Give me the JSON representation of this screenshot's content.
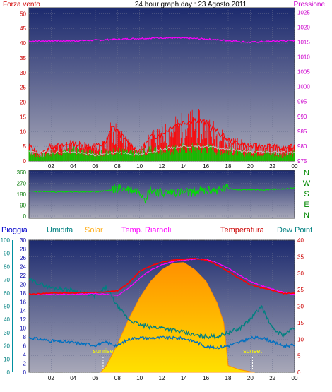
{
  "title": "24 hour graph day : 23 Agosto 2011",
  "colors": {
    "wind_red": "#ff0000",
    "wind_green": "#00cc00",
    "wind_gray": "#c0c0c0",
    "pressure": "#ff00ff",
    "direction": "#00dd00",
    "humidity": "#008080",
    "solar_label": "#ffb020",
    "solar_fill": "#ffd000",
    "solar_top": "#ff9000",
    "riarnoli": "#ff00ff",
    "temperature": "#ff0000",
    "dewpoint": "#0070c0",
    "rain_axis": "#0090a0",
    "label_yellow": "#ffff00"
  },
  "chart_data": [
    {
      "type": "line",
      "name": "wind-pressure",
      "left_label": "Forza vento",
      "right_label": "Pressione",
      "left_ticks": [
        0,
        5,
        10,
        15,
        20,
        25,
        30,
        35,
        40,
        45,
        50
      ],
      "right_ticks": [
        975,
        980,
        985,
        990,
        995,
        1000,
        1005,
        1010,
        1015,
        1020,
        1025
      ],
      "x_ticks": [
        "02",
        "04",
        "06",
        "08",
        "10",
        "12",
        "14",
        "16",
        "18",
        "20",
        "22",
        "00"
      ],
      "xlim": [
        0,
        24
      ],
      "ylim_left": [
        0,
        52
      ],
      "ylim_right": [
        975,
        1026.5
      ],
      "series": [
        {
          "role": "pressure",
          "axis": "right",
          "x": [
            0,
            2,
            4,
            6,
            8,
            10,
            12,
            14,
            16,
            18,
            20,
            22,
            24
          ],
          "y": [
            1015.3,
            1015.4,
            1015.4,
            1015.6,
            1015.9,
            1016.2,
            1016.4,
            1016.3,
            1016.0,
            1015.5,
            1014.9,
            1015.3,
            1015.5
          ]
        },
        {
          "role": "gust",
          "axis": "left",
          "x": [
            0,
            1,
            2,
            3,
            4,
            5,
            6,
            7,
            7.5,
            8,
            9,
            10,
            11,
            12,
            13,
            14,
            15,
            16,
            17,
            18,
            19,
            20,
            21,
            22,
            23,
            24
          ],
          "y": [
            5,
            2,
            5,
            5,
            6,
            5,
            5,
            6,
            12,
            10,
            6,
            3,
            8,
            9,
            12,
            13,
            14,
            13,
            10,
            7,
            6,
            5,
            5,
            5,
            4,
            5
          ]
        },
        {
          "role": "wind",
          "axis": "left",
          "x": [
            0,
            1,
            2,
            3,
            4,
            5,
            6,
            7,
            8,
            9,
            10,
            11,
            12,
            13,
            14,
            15,
            16,
            17,
            18,
            19,
            20,
            21,
            22,
            23,
            24
          ],
          "y": [
            3,
            2,
            3,
            3,
            4,
            3,
            3,
            3,
            4,
            3,
            3,
            4,
            4,
            4,
            5,
            5,
            5,
            4,
            4,
            3,
            3,
            3,
            3,
            2,
            3
          ]
        },
        {
          "role": "average",
          "axis": "left",
          "x": [
            0,
            2,
            4,
            6,
            8,
            10,
            12,
            14,
            16,
            18,
            20,
            22,
            24
          ],
          "y": [
            3,
            3,
            3,
            2,
            3,
            2,
            4,
            5,
            5,
            4,
            3,
            3,
            3
          ]
        }
      ]
    },
    {
      "type": "line",
      "name": "wind-direction",
      "left_ticks": [
        0,
        90,
        180,
        270,
        360
      ],
      "compass": [
        "N",
        "W",
        "S",
        "E",
        "N"
      ],
      "xlim": [
        0,
        24
      ],
      "ylim": [
        0,
        360
      ],
      "series": [
        {
          "role": "direction",
          "x": [
            0,
            2,
            4,
            6,
            7.5,
            8,
            9,
            10,
            10.5,
            11,
            12,
            13,
            14,
            15,
            16,
            17,
            18,
            19,
            20,
            21,
            22,
            23,
            24
          ],
          "y": [
            205,
            200,
            200,
            200,
            215,
            230,
            220,
            210,
            150,
            220,
            190,
            200,
            195,
            200,
            210,
            215,
            230,
            215,
            220,
            215,
            220,
            225,
            230
          ]
        }
      ]
    },
    {
      "type": "line",
      "name": "multi-sensor",
      "labels": {
        "rain": "Pioggia",
        "humidity": "Umidita",
        "solar": "Solar",
        "riarnoli": "Temp. Riarnoli",
        "temperature": "Temperatura",
        "dewpoint": "Dew Point"
      },
      "humidity_ticks": [
        0,
        10,
        20,
        30,
        40,
        50,
        60,
        70,
        80,
        90,
        100
      ],
      "rain_ticks": [
        0,
        2,
        4,
        6,
        8,
        10,
        12,
        14,
        16,
        18,
        20,
        22,
        24,
        26,
        28,
        30
      ],
      "temp_ticks": [
        0,
        5,
        10,
        15,
        20,
        25,
        30,
        35,
        40
      ],
      "x_ticks": [
        "02",
        "04",
        "06",
        "08",
        "10",
        "12",
        "14",
        "16",
        "18",
        "20",
        "22",
        "00"
      ],
      "xlim": [
        0,
        24
      ],
      "ylim_temp": [
        0,
        40
      ],
      "annotations": [
        {
          "text": "sunrise",
          "x": 6.7
        },
        {
          "text": "sunset",
          "x": 20.2
        }
      ],
      "series": [
        {
          "role": "riarnoli",
          "x": [
            0,
            2,
            4,
            6,
            7,
            8,
            9,
            10,
            11,
            12,
            13,
            14,
            15,
            16,
            17,
            18,
            19,
            20,
            21,
            22,
            23,
            24
          ],
          "y": [
            23.5,
            23.5,
            23.6,
            23.8,
            23.6,
            23.2,
            25.5,
            28.5,
            31.0,
            32.5,
            33.5,
            34.0,
            34.3,
            34.2,
            33.2,
            31.5,
            29.5,
            27.5,
            26.2,
            25.2,
            24.2,
            23.5
          ]
        },
        {
          "role": "temperature",
          "x": [
            0,
            2,
            4,
            6,
            7,
            8,
            9,
            10,
            11,
            12,
            13,
            14,
            15,
            16,
            17,
            18,
            19,
            20,
            21,
            22,
            23,
            24
          ],
          "y": [
            23.6,
            24.0,
            24.0,
            24.2,
            24.3,
            24.6,
            27.0,
            30.5,
            32.2,
            33.3,
            34.0,
            34.2,
            34.4,
            34.0,
            32.5,
            30.5,
            28.5,
            26.5,
            25.5,
            24.8,
            23.8,
            24.0
          ]
        },
        {
          "role": "humidity",
          "x": [
            0,
            2,
            4,
            6,
            7,
            8,
            9,
            10,
            11,
            12,
            13,
            14,
            15,
            16,
            17,
            18,
            19,
            20,
            21,
            22,
            23,
            24
          ],
          "y": [
            70,
            64,
            62,
            58,
            64,
            50,
            40,
            36,
            34,
            34,
            32,
            30,
            28,
            27,
            27,
            30,
            33,
            40,
            50,
            33,
            28,
            34
          ]
        },
        {
          "role": "dewpoint",
          "x": [
            0,
            2,
            4,
            6,
            7,
            8,
            9,
            10,
            11,
            12,
            13,
            14,
            15,
            16,
            17,
            18,
            19,
            20,
            21,
            22,
            23,
            24
          ],
          "y": [
            10.5,
            9.5,
            9.0,
            8.2,
            9.0,
            8.0,
            10.0,
            10.5,
            10.3,
            10.5,
            10.4,
            10.2,
            9.3,
            7.8,
            7.5,
            8.0,
            9.0,
            10.3,
            10.5,
            9.2,
            8.0,
            8.2
          ]
        },
        {
          "role": "solar",
          "x": [
            6.5,
            7,
            8,
            9,
            10,
            11,
            12,
            13,
            14,
            15,
            16,
            17,
            17.6,
            18,
            19,
            20,
            20.4
          ],
          "y": [
            0,
            2.0,
            8.5,
            16.0,
            22.5,
            27.5,
            31.0,
            33.0,
            33.2,
            31.0,
            27.5,
            21.0,
            15.0,
            2.0,
            0.8,
            0.2,
            0
          ]
        }
      ]
    }
  ]
}
